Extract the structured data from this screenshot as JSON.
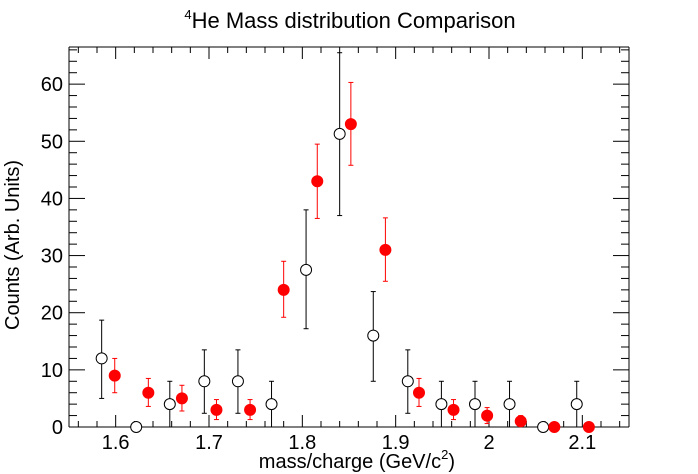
{
  "chart_data": {
    "type": "scatter",
    "title": {
      "superscript": "4",
      "main": "He Mass distribution Comparison"
    },
    "xlabel": {
      "main": "mass/charge (GeV/c",
      "superscript": "2",
      "suffix": ")"
    },
    "ylabel": "Counts (Arb. Units)",
    "xlim": [
      1.55,
      2.15
    ],
    "ylim": [
      0,
      66.5
    ],
    "x_ticks": [
      1.6,
      1.7,
      1.8,
      1.9,
      2.0,
      2.1
    ],
    "x_tick_labels": [
      "1.6",
      "1.7",
      "1.8",
      "1.9",
      "2",
      "2.1"
    ],
    "y_ticks": [
      0,
      10,
      20,
      30,
      40,
      50,
      60
    ],
    "y_tick_labels": [
      "0",
      "10",
      "20",
      "30",
      "40",
      "50",
      "60"
    ],
    "grid": false,
    "legend": "none",
    "series": [
      {
        "marker": "open-circle",
        "color": "#000000",
        "points": [
          {
            "x": 1.585,
            "y": 12,
            "lo": 5,
            "hi": 18.7
          },
          {
            "x": 1.622,
            "y": 0,
            "lo": 0,
            "hi": 0
          },
          {
            "x": 1.658,
            "y": 4,
            "lo": 0,
            "hi": 8
          },
          {
            "x": 1.695,
            "y": 8,
            "lo": 2.4,
            "hi": 13.5
          },
          {
            "x": 1.731,
            "y": 8,
            "lo": 2.4,
            "hi": 13.5
          },
          {
            "x": 1.767,
            "y": 4,
            "lo": 0,
            "hi": 8
          },
          {
            "x": 1.804,
            "y": 27.5,
            "lo": 17.2,
            "hi": 38
          },
          {
            "x": 1.84,
            "y": 51.3,
            "lo": 37,
            "hi": 65.5
          },
          {
            "x": 1.876,
            "y": 16,
            "lo": 8,
            "hi": 23.7
          },
          {
            "x": 1.913,
            "y": 8,
            "lo": 2.4,
            "hi": 13.5
          },
          {
            "x": 1.949,
            "y": 4,
            "lo": 0,
            "hi": 8
          },
          {
            "x": 1.985,
            "y": 4,
            "lo": 0,
            "hi": 8
          },
          {
            "x": 2.022,
            "y": 4,
            "lo": 0,
            "hi": 8
          },
          {
            "x": 2.058,
            "y": 0,
            "lo": 0,
            "hi": 0
          },
          {
            "x": 2.094,
            "y": 4,
            "lo": 0,
            "hi": 8
          }
        ]
      },
      {
        "marker": "filled-circle",
        "color": "#ff0000",
        "points": [
          {
            "x": 1.599,
            "y": 9,
            "lo": 6,
            "hi": 12
          },
          {
            "x": 1.635,
            "y": 6,
            "lo": 3.6,
            "hi": 8.5
          },
          {
            "x": 1.671,
            "y": 5,
            "lo": 2.8,
            "hi": 7.3
          },
          {
            "x": 1.708,
            "y": 3,
            "lo": 1.3,
            "hi": 4.8
          },
          {
            "x": 1.744,
            "y": 3,
            "lo": 1.3,
            "hi": 4.8
          },
          {
            "x": 1.78,
            "y": 24,
            "lo": 19.2,
            "hi": 29
          },
          {
            "x": 1.816,
            "y": 43,
            "lo": 36.5,
            "hi": 49.5
          },
          {
            "x": 1.852,
            "y": 53,
            "lo": 45.8,
            "hi": 60.3
          },
          {
            "x": 1.889,
            "y": 31,
            "lo": 25.5,
            "hi": 36.6
          },
          {
            "x": 1.925,
            "y": 6,
            "lo": 3.6,
            "hi": 8.5
          },
          {
            "x": 1.962,
            "y": 3,
            "lo": 1.3,
            "hi": 4.8
          },
          {
            "x": 1.998,
            "y": 2,
            "lo": 0.6,
            "hi": 3.4
          },
          {
            "x": 2.034,
            "y": 1,
            "lo": 0,
            "hi": 2
          },
          {
            "x": 2.07,
            "y": 0,
            "lo": 0,
            "hi": 0.7
          },
          {
            "x": 2.107,
            "y": 0,
            "lo": 0,
            "hi": 0.7
          }
        ]
      }
    ]
  }
}
